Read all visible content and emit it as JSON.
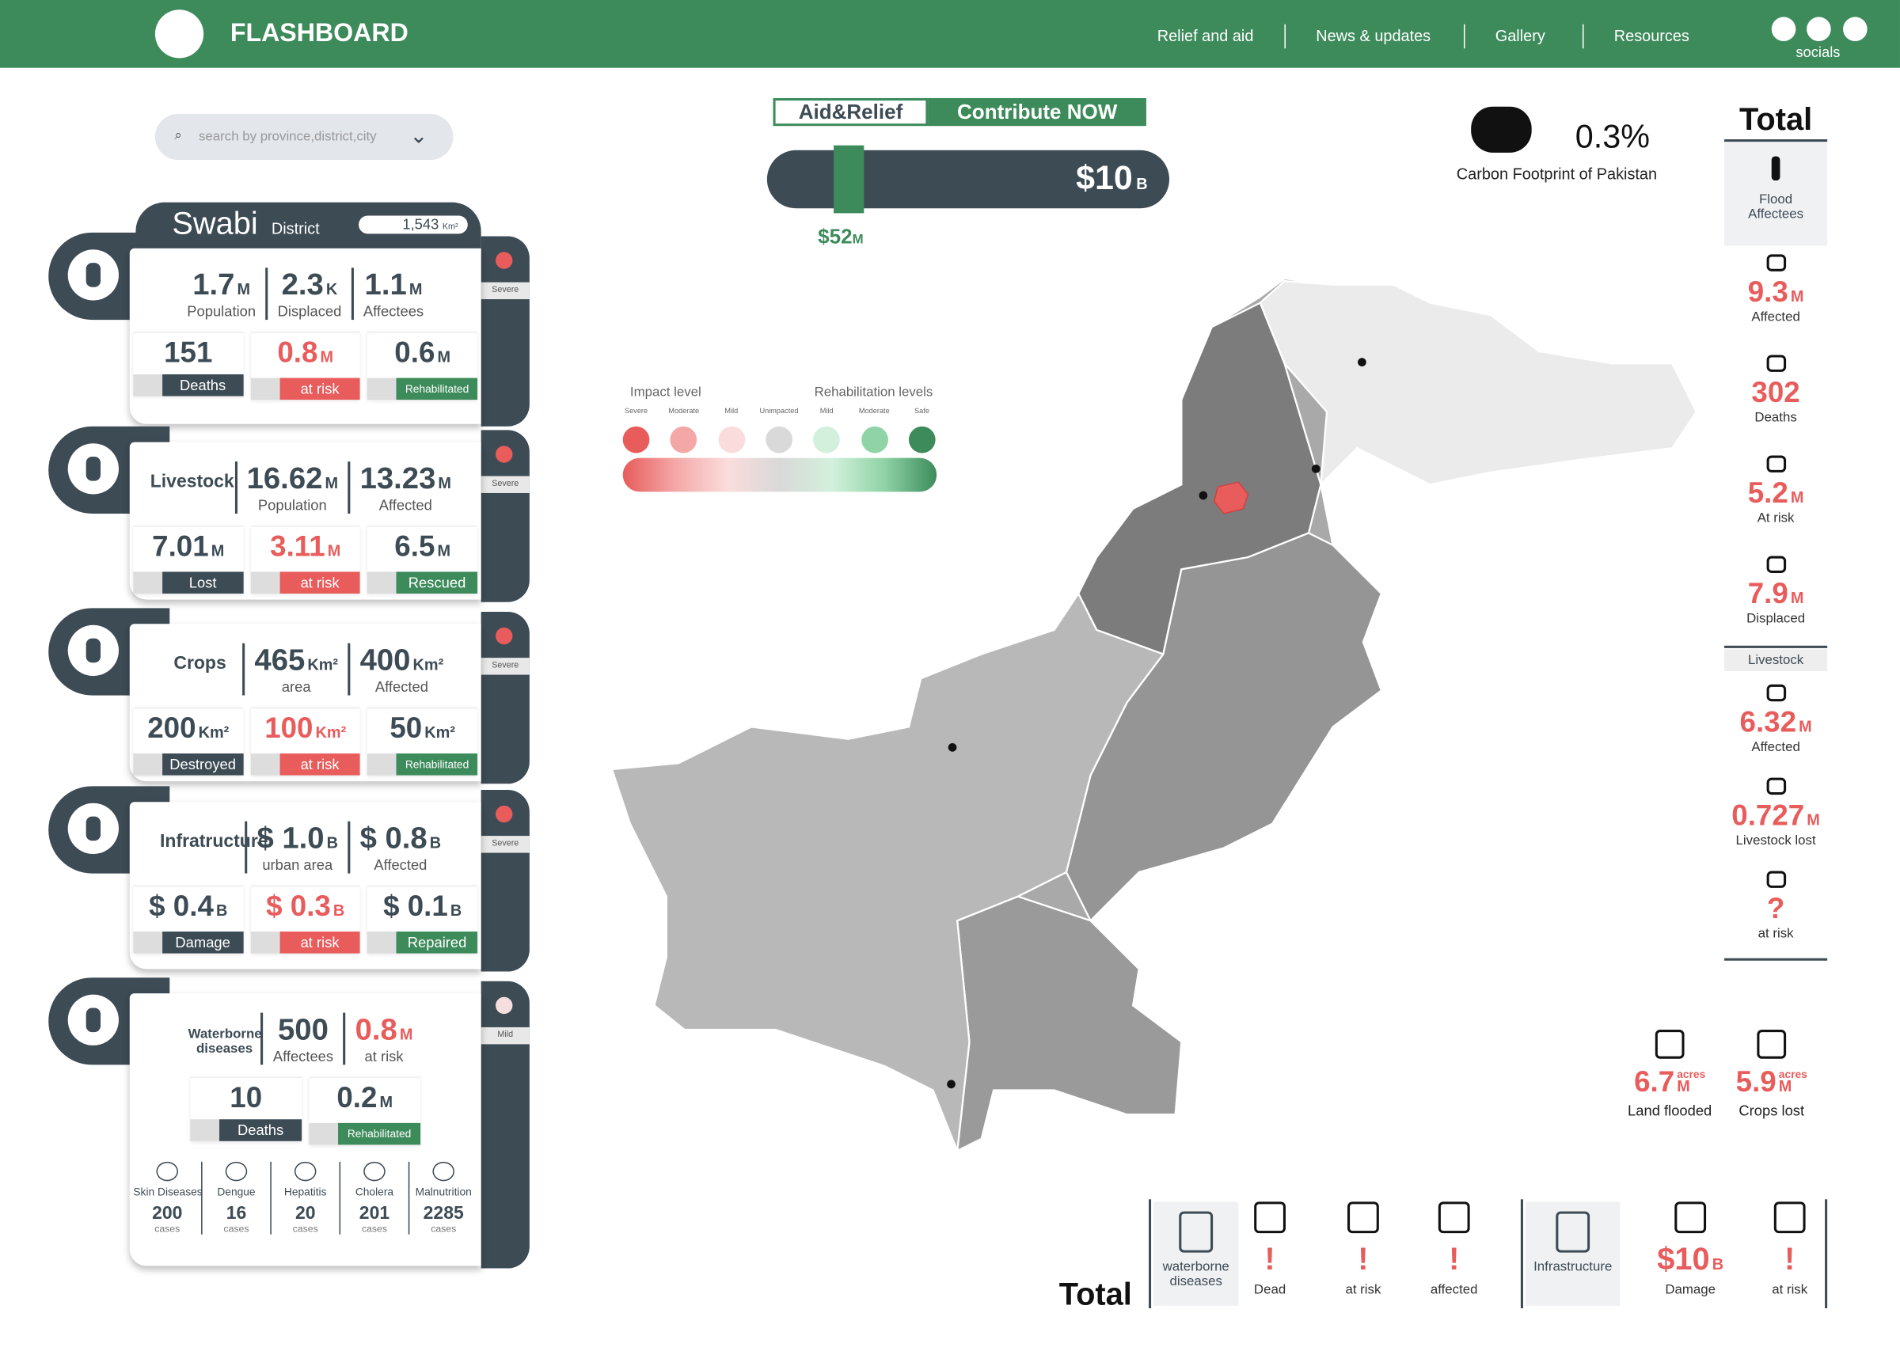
{
  "header": {
    "brand": "FLASHBOARD",
    "nav": [
      "Relief and aid",
      "News & updates",
      "Gallery",
      "Resources"
    ],
    "socials": "socials"
  },
  "search": {
    "placeholder": "search by province,district,city"
  },
  "district": {
    "name": "Swabi",
    "label": "District",
    "area": "1,543",
    "area_unit": "Km²"
  },
  "cards": [
    {
      "severity": "Severe",
      "top": [
        {
          "value": "1.7",
          "unit": "M",
          "label": "Population"
        },
        {
          "value": "2.3",
          "unit": "K",
          "label": "Displaced"
        },
        {
          "value": "1.1",
          "unit": "M",
          "label": "Affectees"
        }
      ],
      "bottom": [
        {
          "value": "151",
          "label": "Deaths"
        },
        {
          "value": "0.8",
          "unit": "M",
          "label": "at risk"
        },
        {
          "value": "0.6",
          "unit": "M",
          "label": "Rehabilitated"
        }
      ]
    },
    {
      "title": "Livestock",
      "severity": "Severe",
      "top": [
        {
          "value": "16.62",
          "unit": "M",
          "label": "Population"
        },
        {
          "value": "13.23",
          "unit": "M",
          "label": "Affected"
        }
      ],
      "bottom": [
        {
          "value": "7.01",
          "unit": "M",
          "label": "Lost"
        },
        {
          "value": "3.11",
          "unit": "M",
          "label": "at risk"
        },
        {
          "value": "6.5",
          "unit": "M",
          "label": "Rescued"
        }
      ]
    },
    {
      "title": "Crops",
      "severity": "Severe",
      "top": [
        {
          "value": "465",
          "unit": "Km²",
          "label": "area"
        },
        {
          "value": "400",
          "unit": "Km²",
          "label": "Affected"
        }
      ],
      "bottom": [
        {
          "value": "200",
          "unit": "Km²",
          "label": "Destroyed"
        },
        {
          "value": "100",
          "unit": "Km²",
          "label": "at risk"
        },
        {
          "value": "50",
          "unit": "Km²",
          "label": "Rehabilitated"
        }
      ]
    },
    {
      "title": "Infratructure",
      "severity": "Severe",
      "top": [
        {
          "value": "$ 1.0",
          "unit": "B",
          "label": "urban area"
        },
        {
          "value": "$ 0.8",
          "unit": "B",
          "label": "Affected"
        }
      ],
      "bottom": [
        {
          "value": "$ 0.4",
          "unit": "B",
          "label": "Damage"
        },
        {
          "value": "$ 0.3",
          "unit": "B",
          "label": "at risk"
        },
        {
          "value": "$ 0.1",
          "unit": "B",
          "label": "Repaired"
        }
      ]
    },
    {
      "title": "Waterborne diseases",
      "severity": "Mild",
      "top": [
        {
          "value": "500",
          "label": "Affectees"
        },
        {
          "value": "0.8",
          "unit": "M",
          "label": "at risk"
        }
      ],
      "bottom": [
        {
          "value": "10",
          "label": "Deaths"
        },
        {
          "value": "0.2",
          "unit": "M",
          "label": "Rehabilitated"
        }
      ],
      "diseases": [
        {
          "name": "Skin Diseases",
          "count": "200",
          "unit": "cases"
        },
        {
          "name": "Dengue",
          "count": "16",
          "unit": "cases"
        },
        {
          "name": "Hepatitis",
          "count": "20",
          "unit": "cases"
        },
        {
          "name": "Cholera",
          "count": "201",
          "unit": "cases"
        },
        {
          "name": "Malnutrition",
          "count": "2285",
          "unit": "cases"
        }
      ]
    }
  ],
  "aid": {
    "tabs": [
      "Aid&Relief",
      "Contribute NOW"
    ],
    "goal": "$10",
    "goal_unit": "B",
    "raised": "$52",
    "raised_unit": "M"
  },
  "legend": {
    "impact_title": "Impact level",
    "rehab_title": "Rehabilitation levels",
    "levels": [
      {
        "label": "Severe",
        "color": "#e85c5c"
      },
      {
        "label": "Moderate",
        "color": "#f4a7a7"
      },
      {
        "label": "Mild",
        "color": "#fbdcdc"
      },
      {
        "label": "Unimpacted",
        "color": "#d9d9d9"
      },
      {
        "label": "Mild",
        "color": "#d3f0dc"
      },
      {
        "label": "Moderate",
        "color": "#8fd3a6"
      },
      {
        "label": "Safe",
        "color": "#3d8b5b"
      }
    ]
  },
  "carbon": {
    "value": "0.3%",
    "label": "Carbon Footprint of Pakistan"
  },
  "totals": {
    "title": "Total",
    "head": "Flood Affectees",
    "items": [
      {
        "value": "9.3",
        "unit": "M",
        "label": "Affected"
      },
      {
        "value": "302",
        "label": "Deaths"
      },
      {
        "value": "5.2",
        "unit": "M",
        "label": "At risk"
      },
      {
        "value": "7.9",
        "unit": "M",
        "label": "Displaced"
      }
    ],
    "livestock_title": "Livestock",
    "livestock": [
      {
        "value": "6.32",
        "unit": "M",
        "label": "Affected"
      },
      {
        "value": "0.727",
        "unit": "M",
        "label": "Livestock lost"
      },
      {
        "value": "?",
        "label": "at risk"
      }
    ]
  },
  "land": [
    {
      "value": "6.7",
      "unit": "M",
      "unit2": "acres",
      "label": "Land flooded"
    },
    {
      "value": "5.9",
      "unit": "M",
      "unit2": "acres",
      "label": "Crops lost"
    }
  ],
  "bottom_total": {
    "title": "Total",
    "waterborne": {
      "label": "waterborne diseases",
      "items": [
        {
          "value": "!",
          "label": "Dead"
        },
        {
          "value": "!",
          "label": "at risk"
        },
        {
          "value": "!",
          "label": "affected"
        }
      ]
    },
    "infrastructure": {
      "label": "Infrastructure",
      "items": [
        {
          "value": "$10",
          "unit": "B",
          "label": "Damage"
        },
        {
          "value": "!",
          "label": "at risk"
        }
      ]
    }
  }
}
